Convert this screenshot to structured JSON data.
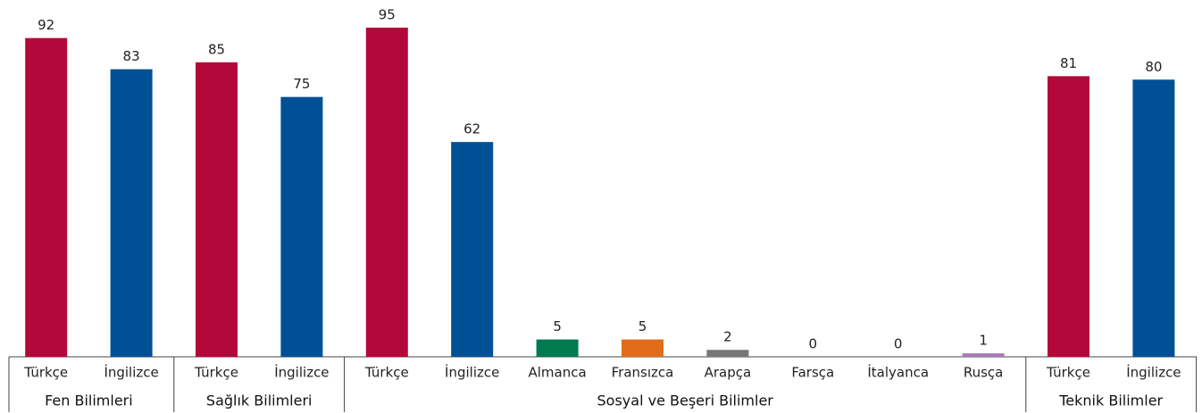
{
  "chart_data": {
    "type": "bar",
    "groups": [
      {
        "name": "Fen Bilimleri",
        "categories": [
          "Türkçe",
          "İngilizce"
        ],
        "values": [
          92,
          83
        ],
        "colors": [
          "#b5083a",
          "#005096"
        ]
      },
      {
        "name": "Sağlık Bilimleri",
        "categories": [
          "Türkçe",
          "İngilizce"
        ],
        "values": [
          85,
          75
        ],
        "colors": [
          "#b5083a",
          "#005096"
        ]
      },
      {
        "name": "Sosyal ve Beşeri Bilimler",
        "categories": [
          "Türkçe",
          "İngilizce",
          "Almanca",
          "Fransızca",
          "Arapça",
          "Farsça",
          "İtalyanca",
          "Rusça"
        ],
        "values": [
          95,
          62,
          5,
          5,
          2,
          0,
          0,
          1
        ],
        "colors": [
          "#b5083a",
          "#005096",
          "#007a4e",
          "#e06c1c",
          "#777777",
          "#999999",
          "#999999",
          "#a67cb8"
        ]
      },
      {
        "name": "Teknik Bilimler",
        "categories": [
          "Türkçe",
          "İngilizce"
        ],
        "values": [
          81,
          80
        ],
        "colors": [
          "#b5083a",
          "#005096"
        ]
      }
    ]
  }
}
